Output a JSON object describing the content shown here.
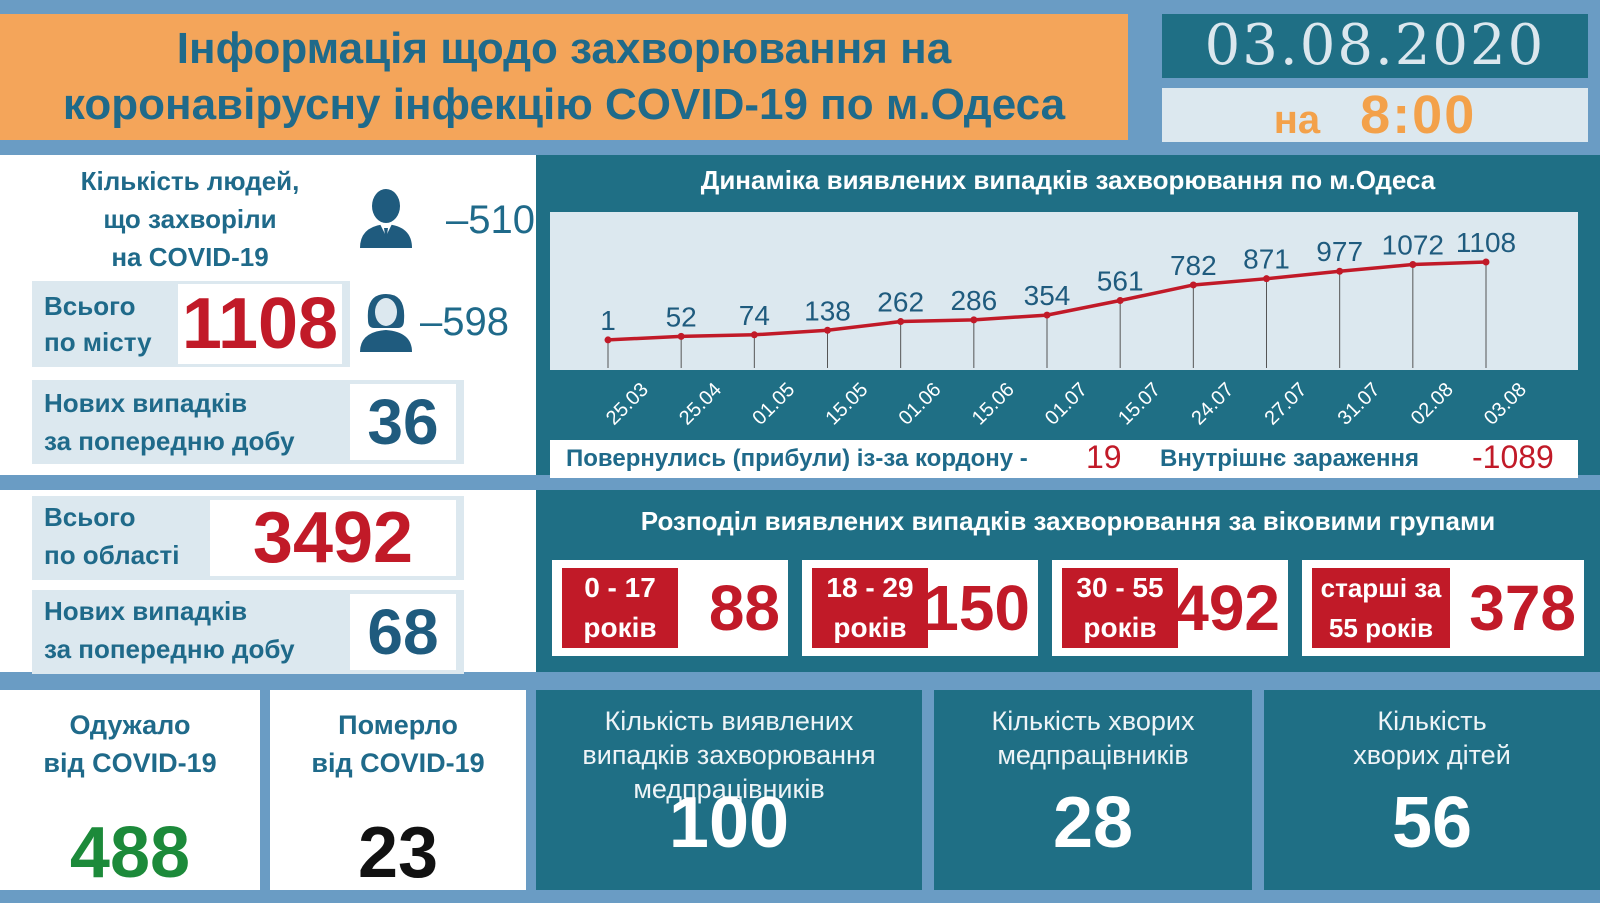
{
  "header": {
    "title_line1": "Інформація щодо захворювання на",
    "title_line2": "коронавірусну інфекцію COVID-19 по м.Одеса",
    "date": "03.08.2020",
    "time_prefix": "на",
    "time": "8:00"
  },
  "city": {
    "people_label_line1": "Кількість людей,",
    "people_label_line2": "що захворіли",
    "people_label_line3": "на COVID-19",
    "male_count": "–510",
    "female_count": "–598",
    "total_label_line1": "Всього",
    "total_label_line2": "по місту",
    "total_value": "1108",
    "new_label_line1": "Нових випадків",
    "new_label_line2": "за попередню добу",
    "new_value": "36"
  },
  "region": {
    "total_label_line1": "Всього",
    "total_label_line2": "по області",
    "total_value": "3492",
    "new_label_line1": "Нових випадків",
    "new_label_line2": "за попередню добу",
    "new_value": "68"
  },
  "recovered": {
    "label_line1": "Одужало",
    "label_line2": "від COVID-19",
    "value": "488"
  },
  "died": {
    "label_line1": "Померло",
    "label_line2": "від COVID-19",
    "value": "23"
  },
  "chart_data": {
    "type": "line",
    "title": "Динаміка виявлених випадків захворювання по м.Одеса",
    "categories": [
      "25.03",
      "25.04",
      "01.05",
      "15.05",
      "01.06",
      "15.06",
      "01.07",
      "15.07",
      "24.07",
      "27.07",
      "31.07",
      "02.08",
      "03.08"
    ],
    "values": [
      1,
      52,
      74,
      138,
      262,
      286,
      354,
      561,
      782,
      871,
      977,
      1072,
      1108
    ],
    "line_color": "#c11a28",
    "label_color": "#1f5b7e"
  },
  "sources": {
    "border_label": "Повернулись (прибули) із-за кордону -",
    "border_value": "19",
    "internal_label": "Внутрішнє зараження",
    "internal_value": "-1089"
  },
  "age": {
    "title": "Розподіл виявлених випадків захворювання за віковими групами",
    "groups": [
      {
        "label_line1": "0 - 17",
        "label_line2": "років",
        "value": "88"
      },
      {
        "label_line1": "18 - 29",
        "label_line2": "років",
        "value": "150"
      },
      {
        "label_line1": "30 - 55",
        "label_line2": "років",
        "value": "492"
      },
      {
        "label_line1": "старші за",
        "label_line2": "55 років",
        "value": "378"
      }
    ]
  },
  "medical": {
    "cases_label_line1": "Кількість виявлених",
    "cases_label_line2": "випадків захворювання",
    "cases_label_line3": "медпрацівників",
    "cases_value": "100",
    "sick_label_line1": "Кількість хворих",
    "sick_label_line2": "медпрацівників",
    "sick_value": "28",
    "children_label_line1": "Кількість",
    "children_label_line2": "хворих дітей",
    "children_value": "56"
  },
  "colors": {
    "accent_red": "#c11a28",
    "teal": "#1f6f85",
    "orange": "#f4a55a",
    "green": "#1c8a3a"
  }
}
